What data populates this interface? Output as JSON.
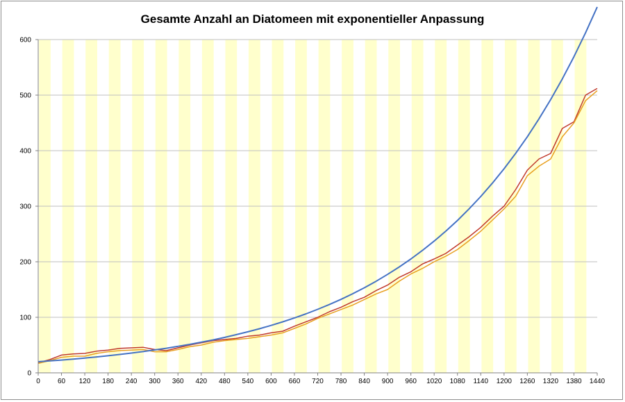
{
  "chart_data": {
    "type": "line",
    "title": "Gesamte Anzahl an Diatomeen mit exponentieller Anpassung",
    "xlabel": "",
    "ylabel": "",
    "xlim": [
      0,
      1440
    ],
    "ylim": [
      0,
      600
    ],
    "x_ticks": [
      "0",
      "60",
      "120",
      "180",
      "240",
      "300",
      "360",
      "420",
      "480",
      "540",
      "600",
      "660",
      "720",
      "780",
      "840",
      "900",
      "960",
      "1020",
      "1080",
      "1140",
      "1200",
      "1260",
      "1320",
      "1380",
      "1440"
    ],
    "y_ticks": [
      "0",
      "100",
      "200",
      "300",
      "400",
      "500",
      "600"
    ],
    "grid": true,
    "legend": "none",
    "shaded_intervals_period": 60,
    "shaded_intervals_width": 30,
    "shade_color": "#ffffcc",
    "series": [
      {
        "color": "#c0392b",
        "x": [
          0,
          30,
          60,
          90,
          120,
          150,
          180,
          210,
          240,
          270,
          300,
          330,
          360,
          390,
          420,
          450,
          480,
          510,
          540,
          570,
          600,
          630,
          660,
          690,
          720,
          750,
          780,
          810,
          840,
          870,
          900,
          930,
          960,
          990,
          1020,
          1050,
          1080,
          1110,
          1140,
          1170,
          1200,
          1230,
          1260,
          1290,
          1320,
          1350,
          1380,
          1410,
          1440
        ],
        "values": [
          18,
          24,
          32,
          34,
          35,
          39,
          41,
          44,
          45,
          46,
          42,
          40,
          45,
          50,
          54,
          58,
          60,
          62,
          66,
          68,
          72,
          75,
          84,
          92,
          100,
          110,
          118,
          128,
          136,
          148,
          158,
          172,
          182,
          196,
          205,
          215,
          230,
          245,
          262,
          282,
          300,
          330,
          365,
          385,
          395,
          440,
          452,
          500,
          512
        ]
      },
      {
        "color": "#e8a020",
        "x": [
          0,
          30,
          60,
          90,
          120,
          150,
          180,
          210,
          240,
          270,
          300,
          330,
          360,
          390,
          420,
          450,
          480,
          510,
          540,
          570,
          600,
          630,
          660,
          690,
          720,
          750,
          780,
          810,
          840,
          870,
          900,
          930,
          960,
          990,
          1020,
          1050,
          1080,
          1110,
          1140,
          1170,
          1200,
          1230,
          1260,
          1290,
          1320,
          1350,
          1380,
          1410,
          1440
        ],
        "values": [
          17,
          22,
          28,
          30,
          30,
          35,
          38,
          40,
          41,
          42,
          38,
          38,
          42,
          47,
          50,
          55,
          58,
          60,
          62,
          65,
          68,
          72,
          80,
          88,
          98,
          106,
          114,
          122,
          132,
          142,
          150,
          165,
          178,
          188,
          200,
          210,
          222,
          238,
          255,
          275,
          295,
          318,
          355,
          372,
          385,
          425,
          450,
          490,
          508
        ]
      },
      {
        "color": "#4472c4",
        "x": [
          0,
          30,
          60,
          90,
          120,
          150,
          180,
          210,
          240,
          270,
          300,
          330,
          360,
          390,
          420,
          450,
          480,
          510,
          540,
          570,
          600,
          630,
          660,
          690,
          720,
          750,
          780,
          810,
          840,
          870,
          900,
          930,
          960,
          990,
          1020,
          1050,
          1080,
          1110,
          1140,
          1170,
          1200,
          1230,
          1260,
          1290,
          1320,
          1350,
          1380,
          1410,
          1440
        ],
        "values": [
          20,
          21.5,
          23,
          24.8,
          26.6,
          28.6,
          30.8,
          33.1,
          35.6,
          38.3,
          41.2,
          44.3,
          47.7,
          51.3,
          55.2,
          59.3,
          63.8,
          68.7,
          73.9,
          79.4,
          85.4,
          91.9,
          98.9,
          106.3,
          114.4,
          123,
          132.3,
          142.4,
          153.1,
          164.7,
          177.2,
          190.6,
          205,
          220.5,
          237.2,
          255.1,
          274.4,
          295.2,
          317.5,
          341.6,
          367.4,
          395.2,
          425.1,
          457.3,
          491.9,
          529.1,
          569.2,
          612.2,
          658.6
        ]
      }
    ]
  }
}
